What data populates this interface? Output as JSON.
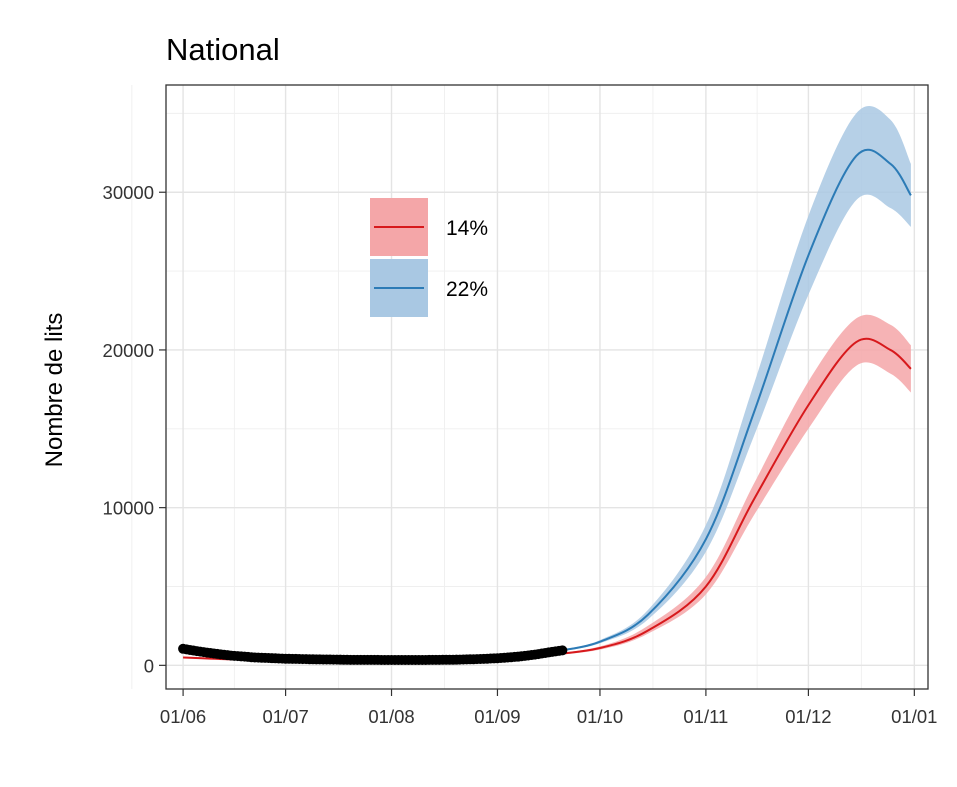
{
  "chart_data": {
    "type": "line",
    "title": "National",
    "xlabel": "",
    "ylabel": "Nombre de lits",
    "x_ticks": [
      "01/06",
      "01/07",
      "01/08",
      "01/09",
      "01/10",
      "01/11",
      "01/12",
      "01/01"
    ],
    "y_ticks": [
      0,
      10000,
      20000,
      30000
    ],
    "xlim": [
      "2020-05-27",
      "2021-01-05"
    ],
    "ylim": [
      -1500,
      36800
    ],
    "grid": true,
    "legend_position": "top-left inside",
    "series": [
      {
        "name": "14%",
        "color": "#d7191c",
        "band_color": "#f4a6a8",
        "points": [
          [
            "2020-06-01",
            500,
            450,
            560
          ],
          [
            "2020-06-15",
            380,
            350,
            420
          ],
          [
            "2020-07-01",
            310,
            290,
            340
          ],
          [
            "2020-07-15",
            280,
            260,
            300
          ],
          [
            "2020-08-01",
            270,
            250,
            290
          ],
          [
            "2020-08-15",
            290,
            270,
            310
          ],
          [
            "2020-09-01",
            390,
            360,
            420
          ],
          [
            "2020-09-15",
            640,
            600,
            680
          ],
          [
            "2020-10-01",
            1100,
            1000,
            1200
          ],
          [
            "2020-10-15",
            2200,
            2000,
            2500
          ],
          [
            "2020-11-01",
            5000,
            4500,
            5600
          ],
          [
            "2020-11-15",
            10500,
            9500,
            11500
          ],
          [
            "2020-12-01",
            16500,
            15000,
            18000
          ],
          [
            "2020-12-15",
            20500,
            19000,
            22000
          ],
          [
            "2020-12-25",
            20000,
            18500,
            21600
          ],
          [
            "2020-12-31",
            18800,
            17300,
            20300
          ]
        ]
      },
      {
        "name": "22%",
        "color": "#2c7bb6",
        "band_color": "#a9c8e3",
        "points": [
          [
            "2020-09-20",
            950,
            900,
            1000
          ],
          [
            "2020-10-01",
            1500,
            1400,
            1600
          ],
          [
            "2020-10-15",
            3200,
            2900,
            3500
          ],
          [
            "2020-11-01",
            8000,
            7200,
            8900
          ],
          [
            "2020-11-15",
            16000,
            14500,
            17800
          ],
          [
            "2020-12-01",
            26000,
            23500,
            28500
          ],
          [
            "2020-12-15",
            32300,
            29500,
            35000
          ],
          [
            "2020-12-25",
            31800,
            29000,
            34600
          ],
          [
            "2020-12-31",
            29800,
            27800,
            31800
          ]
        ]
      },
      {
        "name": "",
        "type": "scatter",
        "color": "#000000",
        "points": [
          [
            "2020-06-01",
            1050
          ],
          [
            "2020-06-05",
            900
          ],
          [
            "2020-06-10",
            750
          ],
          [
            "2020-06-15",
            620
          ],
          [
            "2020-06-22",
            500
          ],
          [
            "2020-07-01",
            420
          ],
          [
            "2020-07-10",
            380
          ],
          [
            "2020-07-20",
            350
          ],
          [
            "2020-08-01",
            340
          ],
          [
            "2020-08-10",
            340
          ],
          [
            "2020-08-20",
            360
          ],
          [
            "2020-08-27",
            400
          ],
          [
            "2020-09-01",
            450
          ],
          [
            "2020-09-07",
            550
          ],
          [
            "2020-09-12",
            680
          ],
          [
            "2020-09-16",
            820
          ],
          [
            "2020-09-20",
            950
          ]
        ]
      }
    ]
  }
}
